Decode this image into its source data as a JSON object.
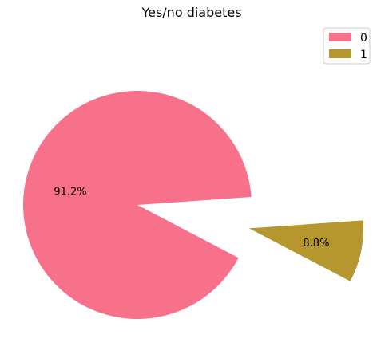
{
  "chart_data": {
    "type": "pie",
    "title": "Yes/no diabetes",
    "categories": [
      "0",
      "1"
    ],
    "values": [
      91.2,
      8.8
    ],
    "labels": [
      "91.2%",
      "8.8%"
    ],
    "colors": [
      "#f7718a",
      "#b6962e"
    ],
    "exploded": [
      false,
      true
    ],
    "legend": {
      "placement": "top-right",
      "entries": [
        "0",
        "1"
      ]
    }
  }
}
